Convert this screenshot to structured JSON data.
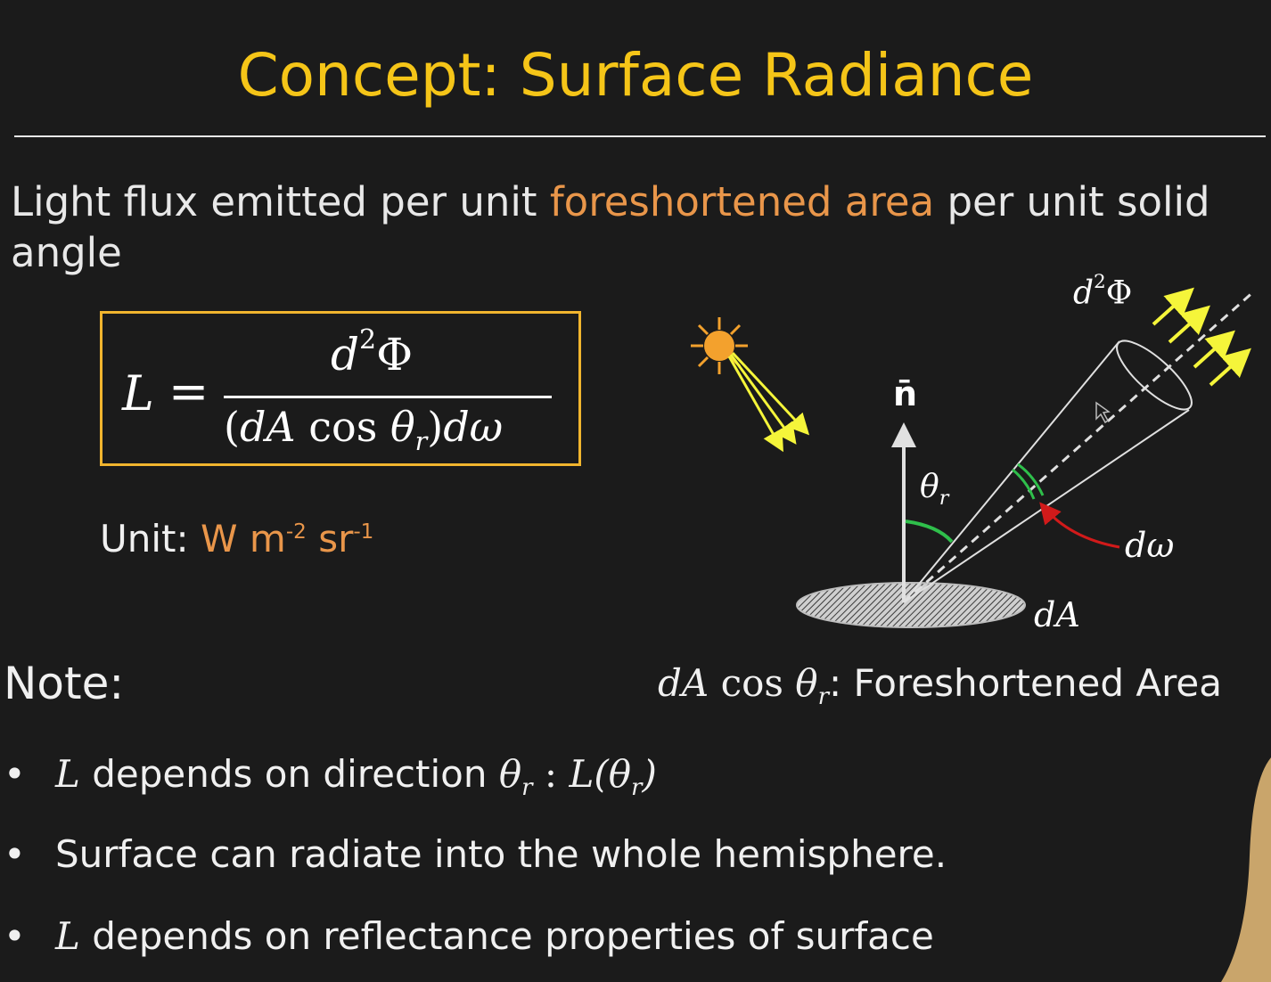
{
  "slide": {
    "title": "Concept: Surface Radiance",
    "intro_pre": "Light flux emitted per unit ",
    "intro_highlight": "foreshortened area",
    "intro_post": " per unit solid angle"
  },
  "formula": {
    "lhs": "L",
    "equals": "=",
    "numerator_d": "d",
    "numerator_exp": "2",
    "numerator_phi": "Φ",
    "denominator_open": "(",
    "denominator_dA": "dA",
    "denominator_cos": " cos ",
    "denominator_theta": "θ",
    "denominator_sub": "r",
    "denominator_close": ")",
    "denominator_domega": "dω"
  },
  "unit": {
    "label": "Unit:",
    "value_main": "W m",
    "exp1": "-2",
    "sr": " sr",
    "exp2": "-1"
  },
  "diagram": {
    "normal_label": "n̄",
    "theta_label": "θ",
    "theta_sub": "r",
    "flux_label": "d",
    "flux_exp": "2",
    "flux_phi": "Φ",
    "domega_label": "dω",
    "dA_label": "dA",
    "colors": {
      "sun": "#f3a12d",
      "rays": "#f5f53a",
      "angle_arc": "#2fbf4b",
      "domega_arrow": "#d11a1a"
    }
  },
  "note": {
    "heading": "Note:",
    "foreshortened_math_dA": "dA",
    "foreshortened_math_cos": " cos ",
    "foreshortened_math_theta": "θ",
    "foreshortened_math_sub": "r",
    "foreshortened_text": ": Foreshortened Area"
  },
  "bullets": [
    {
      "math_L": "L",
      "text": " depends on direction ",
      "math_theta": "θ",
      "sub": "r",
      "sep": " : ",
      "math_fn": "L(θ",
      "fn_sub": "r",
      "fn_close": ")"
    },
    {
      "text": "Surface can radiate into the whole hemisphere."
    },
    {
      "math_L": "L",
      "text": " depends on reflectance properties of surface"
    }
  ],
  "bullet_char": "•"
}
